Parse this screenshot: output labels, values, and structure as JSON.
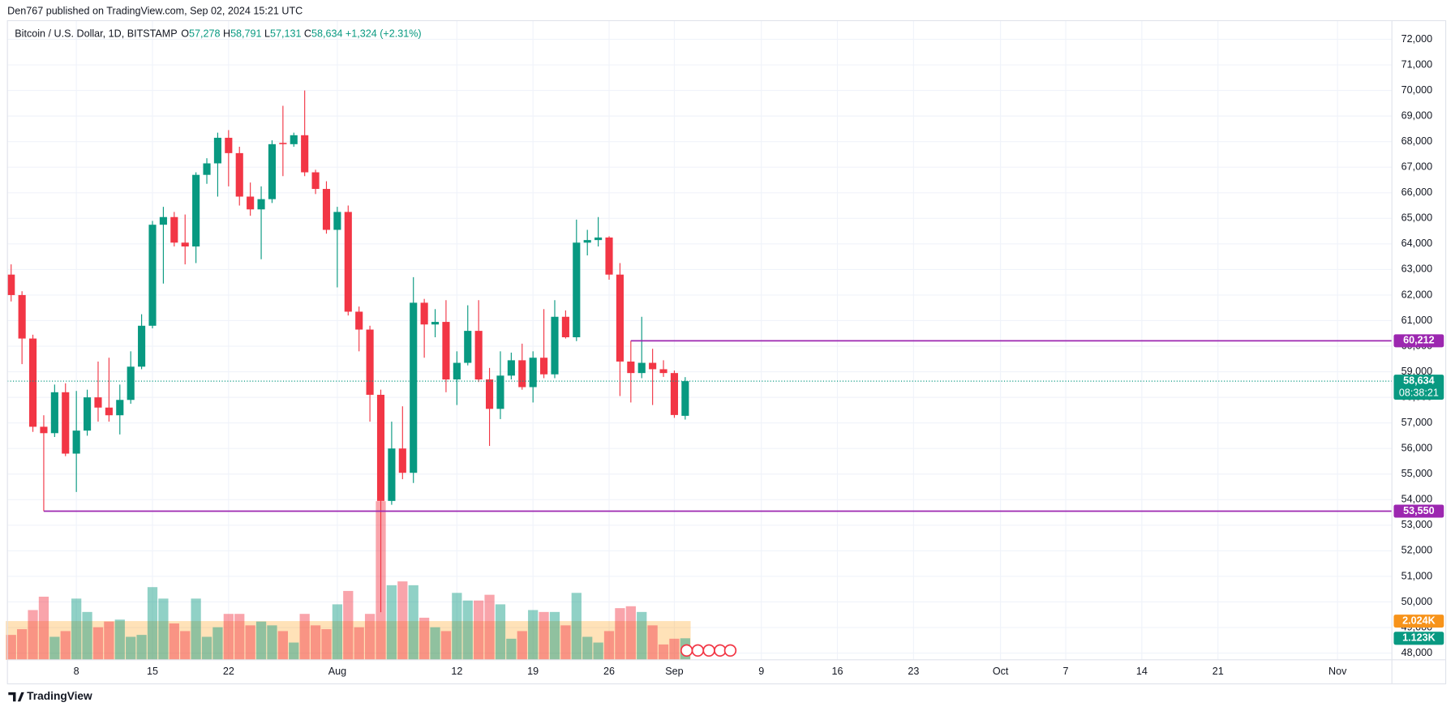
{
  "chart_data": {
    "type": "candlestick",
    "published": "Den767 published on TradingView.com, Sep 02, 2024 15:21 UTC",
    "symbol": "Bitcoin / U.S. Dollar, 1D, BITSTAMP",
    "ohlc_header": [
      {
        "key": "O",
        "value": "57,278"
      },
      {
        "key": "H",
        "value": "58,791"
      },
      {
        "key": "L",
        "value": "57,131"
      },
      {
        "key": "C",
        "value": "58,634"
      }
    ],
    "change": "+1,324 (+2.31%)",
    "brand": "TradingView",
    "up_color": "#089981",
    "down_color": "#f23645",
    "x": [
      "2024-07-02",
      "2024-07-03",
      "2024-07-04",
      "2024-07-05",
      "2024-07-06",
      "2024-07-07",
      "2024-07-08",
      "2024-07-09",
      "2024-07-10",
      "2024-07-11",
      "2024-07-12",
      "2024-07-13",
      "2024-07-14",
      "2024-07-15",
      "2024-07-16",
      "2024-07-17",
      "2024-07-18",
      "2024-07-19",
      "2024-07-20",
      "2024-07-21",
      "2024-07-22",
      "2024-07-23",
      "2024-07-24",
      "2024-07-25",
      "2024-07-26",
      "2024-07-27",
      "2024-07-28",
      "2024-07-29",
      "2024-07-30",
      "2024-07-31",
      "2024-08-01",
      "2024-08-02",
      "2024-08-03",
      "2024-08-04",
      "2024-08-05",
      "2024-08-06",
      "2024-08-07",
      "2024-08-08",
      "2024-08-09",
      "2024-08-10",
      "2024-08-11",
      "2024-08-12",
      "2024-08-13",
      "2024-08-14",
      "2024-08-15",
      "2024-08-16",
      "2024-08-17",
      "2024-08-18",
      "2024-08-19",
      "2024-08-20",
      "2024-08-21",
      "2024-08-22",
      "2024-08-23",
      "2024-08-24",
      "2024-08-25",
      "2024-08-26",
      "2024-08-27",
      "2024-08-28",
      "2024-08-29",
      "2024-08-30",
      "2024-08-31",
      "2024-09-01",
      "2024-09-02"
    ],
    "open": [
      62800,
      62000,
      60300,
      56850,
      56600,
      58200,
      55800,
      56700,
      58000,
      57600,
      57300,
      57900,
      59200,
      60800,
      64750,
      65050,
      64050,
      63900,
      66700,
      67150,
      68150,
      67550,
      65850,
      65350,
      65750,
      67950,
      67900,
      68250,
      66800,
      66150,
      64550,
      65250,
      61350,
      60650,
      58100,
      53950,
      56000,
      55050,
      61700,
      60850,
      60950,
      58700,
      59350,
      60600,
      58700,
      57550,
      58850,
      59450,
      58400,
      59550,
      58900,
      61150,
      60350,
      64050,
      64150,
      64250,
      62800,
      59400,
      58950,
      59350,
      59100,
      58950,
      57278
    ],
    "high": [
      63200,
      62150,
      60450,
      57300,
      58500,
      58550,
      58250,
      58300,
      59400,
      59550,
      58500,
      59800,
      61250,
      64900,
      65450,
      65250,
      65150,
      66800,
      67350,
      68350,
      68450,
      67800,
      66400,
      66250,
      68050,
      69400,
      68350,
      70000,
      66900,
      66450,
      65450,
      65500,
      61550,
      60800,
      58300,
      57050,
      57650,
      62700,
      61850,
      61450,
      61800,
      59800,
      61600,
      61800,
      59150,
      59800,
      59750,
      60100,
      59800,
      61450,
      61800,
      61400,
      64950,
      64550,
      65050,
      64300,
      63250,
      60212,
      61150,
      59900,
      59450,
      59050,
      58791
    ],
    "low": [
      61750,
      59300,
      56650,
      53550,
      56450,
      55700,
      54300,
      56500,
      57050,
      57050,
      56550,
      57750,
      59100,
      60700,
      62450,
      63900,
      63200,
      63250,
      66350,
      65850,
      66250,
      65500,
      65100,
      63400,
      65600,
      66650,
      67800,
      66650,
      65950,
      64400,
      62300,
      61200,
      59800,
      57050,
      49600,
      53800,
      54800,
      54650,
      59550,
      60350,
      58200,
      57700,
      59250,
      58600,
      56100,
      57150,
      58700,
      58300,
      57800,
      58750,
      58750,
      60300,
      60200,
      63550,
      63900,
      62600,
      58050,
      57800,
      58750,
      57700,
      58800,
      57200,
      57131
    ],
    "close": [
      62000,
      60300,
      56850,
      56600,
      58200,
      55800,
      56700,
      58000,
      57600,
      57300,
      57900,
      59200,
      60800,
      64750,
      65050,
      64050,
      63900,
      66700,
      67150,
      68150,
      67550,
      65850,
      65350,
      65750,
      67900,
      67900,
      68250,
      66800,
      66150,
      64550,
      65250,
      61350,
      60650,
      58100,
      53950,
      56000,
      55050,
      61700,
      60850,
      60950,
      58700,
      59350,
      60600,
      58700,
      57550,
      58850,
      59450,
      58400,
      59550,
      58900,
      61150,
      60350,
      64050,
      64150,
      64250,
      62800,
      59400,
      58950,
      59350,
      59100,
      58950,
      57310,
      58634
    ],
    "volume": {
      "values": [
        1.3,
        1.6,
        2.6,
        3.3,
        1.2,
        1.5,
        3.2,
        2.5,
        1.7,
        2.0,
        2.1,
        1.2,
        1.3,
        3.8,
        3.2,
        1.9,
        1.5,
        3.2,
        1.2,
        1.7,
        2.4,
        2.4,
        1.8,
        2.0,
        1.8,
        1.5,
        0.9,
        2.4,
        1.8,
        1.6,
        2.9,
        3.6,
        1.7,
        2.4,
        8.3,
        3.9,
        4.1,
        3.9,
        2.2,
        1.7,
        1.5,
        3.5,
        3.1,
        3.1,
        3.4,
        2.9,
        1.1,
        1.5,
        2.6,
        2.5,
        2.5,
        1.8,
        3.5,
        1.2,
        0.9,
        1.5,
        2.7,
        2.8,
        2.5,
        1.8,
        0.8,
        1.1,
        1.123
      ],
      "value_labels": [
        null,
        null,
        null,
        null,
        null,
        null,
        null,
        null,
        null,
        null,
        null,
        null,
        null,
        null,
        null,
        null,
        null,
        null,
        null,
        null,
        null,
        null,
        null,
        null,
        null,
        null,
        null,
        null,
        null,
        null,
        null,
        null,
        null,
        null,
        null,
        null,
        null,
        null,
        null,
        null,
        null,
        null,
        null,
        null,
        null,
        null,
        null,
        null,
        null,
        null,
        null,
        null,
        null,
        null,
        null,
        null,
        null,
        null,
        null,
        null,
        null,
        null,
        "1.123K"
      ]
    },
    "volume_ma": {
      "value": 2.024,
      "label": "2.024K"
    },
    "price_label": "58,634",
    "countdown": "08:38:21",
    "levels": [
      {
        "value": 60212,
        "label": "60,212",
        "color": "#9c27b0"
      },
      {
        "value": 53550,
        "label": "53,550",
        "color": "#9c27b0"
      }
    ],
    "xlim": [
      "2024-07-02",
      "2024-11-06"
    ],
    "xticks": [
      {
        "value": "2024-07-08",
        "label": "8"
      },
      {
        "value": "2024-07-15",
        "label": "15"
      },
      {
        "value": "2024-07-22",
        "label": "22"
      },
      {
        "value": "2024-08-01",
        "label": "Aug"
      },
      {
        "value": "2024-08-12",
        "label": "12"
      },
      {
        "value": "2024-08-19",
        "label": "19"
      },
      {
        "value": "2024-08-26",
        "label": "26"
      },
      {
        "value": "2024-09-01",
        "label": "Sep"
      },
      {
        "value": "2024-09-09",
        "label": "9"
      },
      {
        "value": "2024-09-16",
        "label": "16"
      },
      {
        "value": "2024-09-23",
        "label": "23"
      },
      {
        "value": "2024-10-01",
        "label": "Oct"
      },
      {
        "value": "2024-10-07",
        "label": "7"
      },
      {
        "value": "2024-10-14",
        "label": "14"
      },
      {
        "value": "2024-10-21",
        "label": "21"
      },
      {
        "value": "2024-11-01",
        "label": "Nov"
      }
    ],
    "ylim": [
      47740,
      72730
    ],
    "yticks": [
      {
        "value": 48000,
        "label": "48,000"
      },
      {
        "value": 49000,
        "label": "49,000"
      },
      {
        "value": 50000,
        "label": "50,000"
      },
      {
        "value": 51000,
        "label": "51,000"
      },
      {
        "value": 52000,
        "label": "52,000"
      },
      {
        "value": 53000,
        "label": "53,000"
      },
      {
        "value": 54000,
        "label": "54,000"
      },
      {
        "value": 55000,
        "label": "55,000"
      },
      {
        "value": 56000,
        "label": "56,000"
      },
      {
        "value": 57000,
        "label": "57,000"
      },
      {
        "value": 58000,
        "label": "58,000"
      },
      {
        "value": 59000,
        "label": "59,000"
      },
      {
        "value": 60000,
        "label": "60,000"
      },
      {
        "value": 61000,
        "label": "61,000"
      },
      {
        "value": 62000,
        "label": "62,000"
      },
      {
        "value": 63000,
        "label": "63,000"
      },
      {
        "value": 64000,
        "label": "64,000"
      },
      {
        "value": 65000,
        "label": "65,000"
      },
      {
        "value": 66000,
        "label": "66,000"
      },
      {
        "value": 67000,
        "label": "67,000"
      },
      {
        "value": 68000,
        "label": "68,000"
      },
      {
        "value": 69000,
        "label": "69,000"
      },
      {
        "value": 70000,
        "label": "70,000"
      },
      {
        "value": 71000,
        "label": "71,000"
      },
      {
        "value": 72000,
        "label": "72,000"
      }
    ],
    "grid": true
  }
}
